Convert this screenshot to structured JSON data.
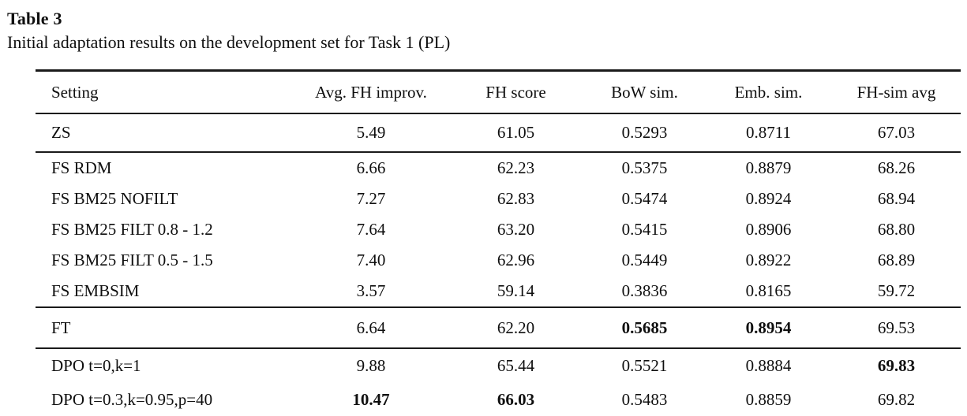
{
  "page": {
    "title": "Table 3",
    "caption": "Initial adaptation results on the development set for Task 1 (PL)"
  },
  "chart_data": {
    "type": "table",
    "columns": [
      "Setting",
      "Avg. FH improv.",
      "FH score",
      "BoW sim.",
      "Emb. sim.",
      "FH-sim avg"
    ],
    "groups": [
      {
        "rows": [
          {
            "cells": [
              "ZS",
              "5.49",
              "61.05",
              "0.5293",
              "0.8711",
              "67.03"
            ],
            "bold_columns": []
          }
        ]
      },
      {
        "rows": [
          {
            "cells": [
              "FS RDM",
              "6.66",
              "62.23",
              "0.5375",
              "0.8879",
              "68.26"
            ],
            "bold_columns": []
          },
          {
            "cells": [
              "FS BM25 NOFILT",
              "7.27",
              "62.83",
              "0.5474",
              "0.8924",
              "68.94"
            ],
            "bold_columns": []
          },
          {
            "cells": [
              "FS BM25 FILT 0.8 - 1.2",
              "7.64",
              "63.20",
              "0.5415",
              "0.8906",
              "68.80"
            ],
            "bold_columns": []
          },
          {
            "cells": [
              "FS BM25 FILT 0.5 - 1.5",
              "7.40",
              "62.96",
              "0.5449",
              "0.8922",
              "68.89"
            ],
            "bold_columns": []
          },
          {
            "cells": [
              "FS EMBSIM",
              "3.57",
              "59.14",
              "0.3836",
              "0.8165",
              "59.72"
            ],
            "bold_columns": []
          }
        ]
      },
      {
        "rows": [
          {
            "cells": [
              "FT",
              "6.64",
              "62.20",
              "0.5685",
              "0.8954",
              "69.53"
            ],
            "bold_columns": [
              3,
              4
            ]
          }
        ]
      },
      {
        "rows": [
          {
            "cells": [
              "DPO t=0,k=1",
              "9.88",
              "65.44",
              "0.5521",
              "0.8884",
              "69.83"
            ],
            "bold_columns": [
              5
            ]
          },
          {
            "cells": [
              "DPO t=0.3,k=0.95,p=40",
              "10.47",
              "66.03",
              "0.5483",
              "0.8859",
              "69.82"
            ],
            "bold_columns": [
              1,
              2
            ]
          }
        ]
      }
    ]
  }
}
